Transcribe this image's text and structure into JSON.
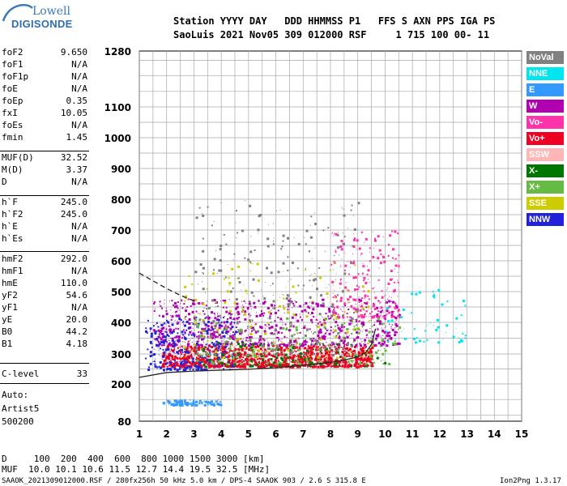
{
  "logo": {
    "line1": "Lowell",
    "line2": "DIGISONDE"
  },
  "header": {
    "line1": "Station YYYY DAY   DDD HHMMSS P1   FFS S AXN PPS IGA PS",
    "line2": "SaoLuis 2021 Nov05 309 012000 RSF     1 715 100 00- 11"
  },
  "params": [
    {
      "name": "foF2",
      "value": "9.650"
    },
    {
      "name": "foF1",
      "value": "N/A"
    },
    {
      "name": "foF1p",
      "value": "N/A"
    },
    {
      "name": "foE",
      "value": "N/A"
    },
    {
      "name": "foEp",
      "value": "0.35"
    },
    {
      "name": "fxI",
      "value": "10.05"
    },
    {
      "name": "foEs",
      "value": "N/A"
    },
    {
      "name": "fmin",
      "value": "1.45"
    },
    {
      "name": "MUF(D)",
      "value": "32.52"
    },
    {
      "name": "M(D)",
      "value": "3.37"
    },
    {
      "name": "D",
      "value": "N/A"
    },
    {
      "name": "h`F",
      "value": "245.0"
    },
    {
      "name": "h`F2",
      "value": "245.0"
    },
    {
      "name": "h`E",
      "value": "N/A"
    },
    {
      "name": "h`Es",
      "value": "N/A"
    },
    {
      "name": "hmF2",
      "value": "292.0"
    },
    {
      "name": "hmF1",
      "value": "N/A"
    },
    {
      "name": "hmE",
      "value": "110.0"
    },
    {
      "name": "yF2",
      "value": "54.6"
    },
    {
      "name": "yF1",
      "value": "N/A"
    },
    {
      "name": "yE",
      "value": "20.0"
    },
    {
      "name": "B0",
      "value": "44.2"
    },
    {
      "name": "B1",
      "value": "4.18"
    },
    {
      "name": "C-level",
      "value": "33"
    }
  ],
  "autoscaling": {
    "line1": "Auto:",
    "line2": "Artist5",
    "line3": "500200"
  },
  "legend": [
    {
      "label": "NoVal",
      "color": "#808080"
    },
    {
      "label": "NNE",
      "color": "#00e5ee"
    },
    {
      "label": "E",
      "color": "#3399ff"
    },
    {
      "label": "W",
      "color": "#b000b0"
    },
    {
      "label": "Vo-",
      "color": "#ff33aa"
    },
    {
      "label": "Vo+",
      "color": "#ee0022"
    },
    {
      "label": "SSW",
      "color": "#ffb6b6"
    },
    {
      "label": "X-",
      "color": "#007700"
    },
    {
      "label": "X+",
      "color": "#66bb44"
    },
    {
      "label": "SSE",
      "color": "#cccc00"
    },
    {
      "label": "NNW",
      "color": "#2222dd"
    }
  ],
  "chart_data": {
    "type": "scatter",
    "xlabel": "",
    "ylabel": "",
    "xlim": [
      1,
      15
    ],
    "ylim_virtual_height_km": [
      80,
      1280
    ],
    "xticks": [
      "1",
      "2",
      "3",
      "4",
      "5",
      "6",
      "7",
      "8",
      "9",
      "10",
      "11",
      "12",
      "13",
      "14",
      "15"
    ],
    "yticks": [
      "80",
      "200",
      "300",
      "400",
      "500",
      "600",
      "700",
      "800",
      "900",
      "1000",
      "1100",
      "1280"
    ],
    "grid": true,
    "y_scale": "nonlinear",
    "series": [
      {
        "color": "#222222",
        "style": "solid",
        "x": [
          1.0,
          2.0,
          3.0,
          4.0,
          5.0,
          6.0,
          7.0,
          8.0,
          8.5,
          9.0,
          9.3,
          9.5,
          9.65
        ],
        "y": [
          222,
          238,
          243,
          246,
          249,
          254,
          262,
          272,
          280,
          290,
          305,
          330,
          380
        ]
      },
      {
        "color": "#222222",
        "style": "dashed",
        "x": [
          1.0,
          1.5,
          2.0,
          2.5,
          3.0
        ],
        "y": [
          560,
          535,
          510,
          488,
          470
        ]
      }
    ],
    "echo_regions": [
      {
        "color": "#ee0022",
        "x": [
          1.8,
          9.5
        ],
        "y": [
          260,
          330
        ],
        "n": 1400
      },
      {
        "color": "#b000b0",
        "x": [
          1.5,
          10.5
        ],
        "y": [
          330,
          480
        ],
        "n": 900
      },
      {
        "color": "#2222dd",
        "x": [
          1.2,
          4.5
        ],
        "y": [
          250,
          420
        ],
        "n": 300
      },
      {
        "color": "#ff33aa",
        "x": [
          8.0,
          10.5
        ],
        "y": [
          420,
          700
        ],
        "n": 250
      },
      {
        "color": "#cccc00",
        "x": [
          2.5,
          9.5
        ],
        "y": [
          290,
          600
        ],
        "n": 180
      },
      {
        "color": "#66bb44",
        "x": [
          3.0,
          10.5
        ],
        "y": [
          270,
          420
        ],
        "n": 220
      },
      {
        "color": "#007700",
        "x": [
          3.0,
          10.0
        ],
        "y": [
          260,
          340
        ],
        "n": 150
      },
      {
        "color": "#00e5ee",
        "x": [
          10.0,
          13.0
        ],
        "y": [
          340,
          520
        ],
        "n": 60
      },
      {
        "color": "#3399ff",
        "x": [
          1.8,
          4.0
        ],
        "y": [
          135,
          150
        ],
        "n": 120
      },
      {
        "color": "#808080",
        "x": [
          3.0,
          9.0
        ],
        "y": [
          300,
          800
        ],
        "n": 350
      }
    ]
  },
  "mufscale": {
    "line1": "D     100  200  400  600  800 1000 1500 3000 [km]",
    "line2": "MUF  10.0 10.1 10.6 11.5 12.7 14.4 19.5 32.5 [MHz]"
  },
  "footer": {
    "file": "SAAOK_2021309012000.RSF / 280fx256h 50 kHz 5.0 km / DPS-4 SAAOK 903 / 2.6 S 315.8 E",
    "version": "Ion2Png 1.3.17"
  }
}
